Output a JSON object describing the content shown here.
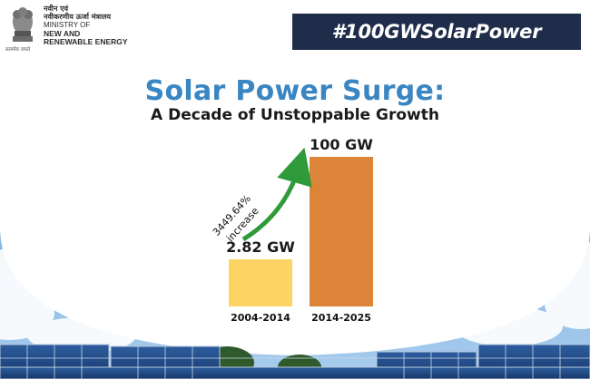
{
  "header": {
    "ministry_hindi_line1": "नवीन एवं",
    "ministry_hindi_line2": "नवीकरणीय ऊर्जा मंत्रालय",
    "ministry_en_line1": "MINISTRY OF",
    "ministry_en_line2": "NEW AND",
    "ministry_en_line3": "RENEWABLE ENERGY",
    "motto": "सत्यमेव जयते",
    "hashtag": "#100GWSolarPower"
  },
  "colors": {
    "title": "#3a86c2",
    "hashtag_bg": "#1f2d4a",
    "bar_2004_2014": "#fbd464",
    "bar_2014_2025": "#dc8538",
    "arrow": "#2e9a3a"
  },
  "chart_data": {
    "type": "bar",
    "title": "Solar Power Surge:",
    "subtitle": "A Decade of Unstoppable Growth",
    "categories": [
      "2004-2014",
      "2014-2025"
    ],
    "values": [
      2.82,
      100
    ],
    "value_labels": [
      "2.82 GW",
      "100 GW"
    ],
    "unit": "GW",
    "annotation": {
      "line1": "3449.64%",
      "line2": "increase"
    }
  }
}
